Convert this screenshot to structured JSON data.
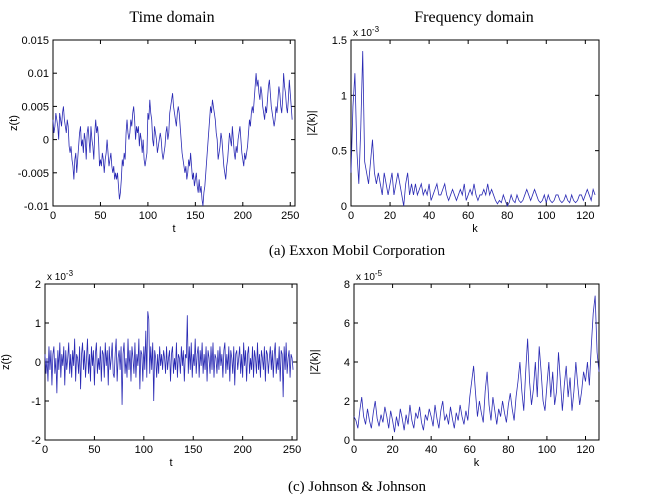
{
  "column_titles": [
    "Time domain",
    "Frequency domain"
  ],
  "captions": [
    "(a)   Exxon Mobil Corporation",
    "(c)   Johnson & Johnson"
  ],
  "series_color": "#2a2ab4",
  "chart_data": [
    {
      "type": "line",
      "xlabel": "t",
      "ylabel": "z(t)",
      "xlim": [
        0,
        255
      ],
      "ylim": [
        -0.01,
        0.015
      ],
      "xticks": [
        0,
        50,
        100,
        150,
        200,
        250
      ],
      "xtick_labels": [
        "0",
        "50",
        "100",
        "150",
        "200",
        "250"
      ],
      "yticks": [
        -0.01,
        -0.005,
        0,
        0.005,
        0.01,
        0.015
      ],
      "ytick_labels": [
        "-0.01",
        "-0.005",
        "0",
        "0.005",
        "0.01",
        "0.015"
      ],
      "exponent": "",
      "x_start": 0,
      "x_step": 1,
      "y": [
        0.003,
        0.001,
        0.002,
        0.004,
        0.003,
        0.002,
        0.0,
        0.004,
        0.003,
        0.002,
        0.004,
        0.005,
        0.003,
        0.002,
        0.001,
        0.003,
        0.002,
        -0.001,
        -0.002,
        -0.001,
        -0.003,
        -0.004,
        -0.006,
        -0.003,
        -0.002,
        -0.005,
        -0.003,
        -0.001,
        0.001,
        0.002,
        -0.001,
        0.0,
        -0.002,
        0.001,
        0.0,
        -0.003,
        0.001,
        0.002,
        0.0,
        -0.002,
        0.002,
        0.0,
        -0.001,
        -0.003,
        0.001,
        0.003,
        0.001,
        0.002,
        0.0,
        -0.004,
        -0.003,
        -0.004,
        -0.002,
        -0.003,
        -0.005,
        -0.003,
        -0.002,
        0.0,
        -0.002,
        -0.004,
        -0.003,
        -0.002,
        -0.004,
        -0.005,
        -0.004,
        -0.006,
        -0.005,
        -0.006,
        -0.005,
        -0.007,
        -0.009,
        -0.008,
        -0.006,
        -0.003,
        -0.004,
        -0.002,
        -0.003,
        0.001,
        0.003,
        0.001,
        0.0,
        0.001,
        0.003,
        0.002,
        0.004,
        0.005,
        0.003,
        0.0,
        0.002,
        0.001,
        0.002,
        -0.001,
        0.001,
        0.0,
        -0.002,
        0.0,
        -0.003,
        -0.004,
        -0.003,
        -0.002,
        0.004,
        0.003,
        0.006,
        0.004,
        0.003,
        0.0,
        -0.001,
        0.002,
        0.001,
        0.0,
        -0.002,
        -0.001,
        0.0,
        0.001,
        0.0,
        -0.002,
        -0.003,
        -0.002,
        -0.001,
        0.001,
        0.002,
        0.0,
        0.001,
        0.004,
        0.005,
        0.006,
        0.007,
        0.005,
        0.004,
        0.003,
        0.002,
        0.004,
        0.005,
        0.004,
        0.002,
        0.0,
        -0.002,
        -0.003,
        -0.004,
        -0.005,
        -0.004,
        -0.006,
        -0.005,
        -0.003,
        -0.004,
        -0.002,
        -0.004,
        -0.006,
        -0.005,
        -0.007,
        -0.006,
        -0.005,
        -0.007,
        -0.008,
        -0.006,
        -0.008,
        -0.007,
        -0.009,
        -0.01,
        -0.008,
        -0.007,
        -0.005,
        -0.003,
        -0.001,
        0.001,
        0.003,
        0.005,
        0.004,
        0.006,
        0.005,
        0.004,
        0.003,
        0.001,
        0.0,
        -0.003,
        -0.002,
        -0.001,
        0.001,
        0.0,
        -0.002,
        -0.004,
        -0.005,
        -0.006,
        -0.004,
        -0.003,
        -0.001,
        0.001,
        0.0,
        -0.001,
        0.002,
        0.0,
        -0.002,
        -0.003,
        -0.001,
        -0.002,
        0.0,
        0.001,
        0.002,
        0.0,
        -0.002,
        -0.003,
        -0.004,
        -0.002,
        -0.003,
        -0.002,
        -0.001,
        0.001,
        0.003,
        0.002,
        0.004,
        0.005,
        0.004,
        0.006,
        0.008,
        0.01,
        0.008,
        0.009,
        0.007,
        0.006,
        0.008,
        0.007,
        0.005,
        0.004,
        0.003,
        0.005,
        0.004,
        0.006,
        0.008,
        0.009,
        0.007,
        0.005,
        0.004,
        0.003,
        0.002,
        0.003,
        0.005,
        0.004,
        0.006,
        0.008,
        0.007,
        0.005,
        0.004,
        0.006,
        0.01,
        0.008,
        0.007,
        0.005,
        0.004,
        0.006,
        0.009,
        0.007,
        0.005,
        0.003
      ]
    },
    {
      "type": "line",
      "xlabel": "k",
      "ylabel": "|Z(k)|",
      "xlim": [
        0,
        127
      ],
      "ylim": [
        0,
        0.0015
      ],
      "xticks": [
        0,
        20,
        40,
        60,
        80,
        100,
        120
      ],
      "xtick_labels": [
        "0",
        "20",
        "40",
        "60",
        "80",
        "100",
        "120"
      ],
      "yticks": [
        0,
        0.0005,
        0.001,
        0.0015
      ],
      "ytick_labels": [
        "0",
        "0.5",
        "1",
        "1.5"
      ],
      "exponent": "x 10",
      "exponent_power": "-3",
      "x_start": 0,
      "x_step": 1,
      "y": [
        0.0003,
        0.0009,
        0.0012,
        0.0005,
        0.0002,
        0.0007,
        0.0014,
        0.0004,
        0.0003,
        0.0002,
        0.0004,
        0.0006,
        0.0003,
        0.0002,
        0.0003,
        0.0002,
        0.0001,
        0.0003,
        0.0002,
        0.0001,
        0.0002,
        0.0003,
        0.0001,
        0.0002,
        0.0003,
        0.0002,
        0.0001,
        0.0,
        0.0002,
        0.0003,
        0.0001,
        0.0002,
        0.0001,
        0.0002,
        0.0001,
        0.00015,
        0.0002,
        0.0001,
        0.00015,
        0.0001,
        0.0002,
        5e-05,
        0.0001,
        0.00015,
        0.0002,
        0.0001,
        0.0001,
        0.00015,
        0.0002,
        0.0001,
        5e-05,
        0.0001,
        0.00015,
        0.0001,
        5e-05,
        0.0001,
        0.00015,
        0.0001,
        0.0002,
        5e-05,
        0.0001,
        0.00015,
        0.0001,
        0.0002,
        0.0001,
        5e-05,
        0.0001,
        0.0001,
        0.00015,
        0.0001,
        0.0002,
        0.0001,
        0.00015,
        0.0001,
        5e-05,
        2e-05,
        5e-05,
        3e-05,
        0.0001,
        5e-05,
        0.0,
        3e-05,
        0.0001,
        5e-05,
        3e-05,
        0.0001,
        5e-05,
        3e-05,
        5e-05,
        0.0001,
        0.00015,
        0.0001,
        5e-05,
        0.0001,
        0.00015,
        0.0001,
        5e-05,
        3e-05,
        5e-05,
        0.0001,
        3e-05,
        0.0001,
        5e-05,
        3e-05,
        5e-05,
        0.0001,
        0.0001,
        5e-05,
        3e-05,
        5e-05,
        0.0001,
        5e-05,
        3e-05,
        0.0001,
        5e-05,
        3e-05,
        5e-05,
        0.0001,
        0.0001,
        5e-05,
        0.0001,
        0.00015,
        0.0001,
        5e-05,
        0.00015,
        0.0001
      ]
    },
    {
      "type": "line",
      "xlabel": "t",
      "ylabel": "z(t)",
      "xlim": [
        0,
        255
      ],
      "ylim": [
        -0.002,
        0.002
      ],
      "xticks": [
        0,
        50,
        100,
        150,
        200,
        250
      ],
      "xtick_labels": [
        "0",
        "50",
        "100",
        "150",
        "200",
        "250"
      ],
      "yticks": [
        -0.002,
        -0.001,
        0,
        0.001,
        0.002
      ],
      "ytick_labels": [
        "-2",
        "-1",
        "0",
        "1",
        "2"
      ],
      "exponent": "x 10",
      "exponent_power": "-3",
      "x_start": 0,
      "x_step": 1,
      "y": [
        0.0002,
        -0.0003,
        0.0001,
        -0.0005,
        0.0004,
        -0.0002,
        0.0003,
        -0.0006,
        0.0002,
        0.0004,
        -0.0003,
        0.0001,
        -0.0008,
        0.0003,
        -0.0002,
        0.0005,
        -0.0004,
        0.0002,
        -0.0001,
        0.0004,
        -0.0006,
        0.0003,
        -0.0002,
        0.0001,
        0.0005,
        -0.0003,
        0.0002,
        -0.0004,
        0.0003,
        -0.0001,
        0.0006,
        -0.0005,
        0.0002,
        0.0001,
        -0.0003,
        0.0004,
        -0.0007,
        0.0002,
        0.0005,
        -0.0002,
        0.0003,
        -0.0004,
        0.0001,
        0.0006,
        -0.0003,
        0.0002,
        -0.0005,
        0.0004,
        -0.0001,
        0.0003,
        -0.0006,
        0.0002,
        0.0005,
        -0.0003,
        0.0001,
        -0.0002,
        0.0004,
        -0.0005,
        0.0003,
        0.0002,
        -0.0004,
        0.0005,
        -0.0001,
        0.0003,
        -0.0006,
        0.0004,
        -0.0002,
        0.0001,
        0.0005,
        -0.0003,
        -0.0004,
        0.0002,
        0.0006,
        -0.0005,
        0.0001,
        0.0003,
        -0.0002,
        0.0004,
        -0.0011,
        0.0002,
        0.0005,
        -0.0003,
        0.0001,
        -0.0004,
        0.0006,
        -0.0002,
        0.0003,
        -0.0005,
        0.0004,
        0.0001,
        -0.0003,
        0.0005,
        -0.0004,
        0.0002,
        -0.0001,
        0.0006,
        -0.0007,
        0.0003,
        0.0002,
        -0.0005,
        0.0004,
        -0.0002,
        0.0008,
        -0.0004,
        0.0013,
        0.0011,
        -0.0003,
        0.0004,
        -0.0002,
        0.0005,
        -0.001,
        0.0003,
        0.0001,
        -0.0004,
        0.0002,
        -0.0003,
        0.0004,
        -0.0001,
        0.0002,
        -0.0002,
        0.0003,
        0.0001,
        -0.0003,
        0.0004,
        -0.0002,
        0.0001,
        0.0003,
        -0.0005,
        0.0002,
        0.0004,
        -0.0003,
        0.0001,
        -0.0002,
        0.0005,
        -0.0004,
        0.0002,
        0.0001,
        -0.0003,
        0.0004,
        -0.0001,
        0.0003,
        -0.0005,
        0.0002,
        0.0001,
        0.0012,
        -0.0003,
        0.0004,
        -0.0002,
        0.0005,
        -0.0004,
        0.0002,
        -0.0001,
        0.0006,
        -0.0003,
        0.0002,
        0.0004,
        -0.0004,
        0.0003,
        -0.0001,
        0.0005,
        -0.0003,
        0.0002,
        -0.0002,
        0.0004,
        -0.0005,
        0.0003,
        0.0001,
        -0.0003,
        0.0004,
        -0.0002,
        0.0005,
        -0.0004,
        0.0002,
        0.0001,
        -0.0003,
        0.0003,
        -0.0002,
        0.0004,
        -0.0001,
        0.0002,
        -0.0004,
        0.0003,
        0.0005,
        -0.0003,
        0.0002,
        -0.0002,
        0.0004,
        -0.0005,
        0.0003,
        0.0001,
        -0.0003,
        0.0004,
        -0.0006,
        0.0002,
        0.0003,
        -0.0002,
        0.0001,
        0.0004,
        -0.0003,
        0.0002,
        -0.0004,
        0.0005,
        -0.0001,
        0.0003,
        -0.0005,
        0.0002,
        0.0004,
        -0.0003,
        0.0001,
        -0.0002,
        0.0004,
        -0.0004,
        0.0003,
        0.0001,
        -0.0003,
        0.0005,
        -0.0002,
        0.0002,
        -0.0004,
        0.0003,
        0.0001,
        -0.0002,
        0.0004,
        -0.0005,
        0.0003,
        0.0002,
        -0.0003,
        0.0001,
        0.0004,
        -0.0002,
        0.0003,
        -0.0004,
        0.0002,
        0.0005,
        -0.0003,
        0.0001,
        -0.0002,
        0.0004,
        -0.0005,
        0.0003,
        0.0002,
        -0.0009,
        0.0004,
        -0.0002,
        0.0005,
        -0.0003,
        0.0001,
        0.0003,
        -0.0004,
        0.0002,
        0.0001,
        -0.0002
      ]
    },
    {
      "type": "line",
      "xlabel": "k",
      "ylabel": "|Z(k)|",
      "xlim": [
        0,
        127
      ],
      "ylim": [
        0,
        8e-05
      ],
      "xticks": [
        0,
        20,
        40,
        60,
        80,
        100,
        120
      ],
      "xtick_labels": [
        "0",
        "20",
        "40",
        "60",
        "80",
        "100",
        "120"
      ],
      "yticks": [
        0,
        2e-05,
        4e-05,
        6e-05,
        8e-05
      ],
      "ytick_labels": [
        "0",
        "2",
        "4",
        "6",
        "8"
      ],
      "exponent": "x 10",
      "exponent_power": "-5",
      "x_start": 0,
      "x_step": 1,
      "y": [
        1.2e-05,
        1e-05,
        6e-06,
        1.5e-05,
        2.2e-05,
        1.2e-05,
        8e-06,
        1.6e-05,
        1e-05,
        6e-06,
        1.4e-05,
        2e-05,
        1.1e-05,
        7e-06,
        1.3e-05,
        9e-06,
        1.7e-05,
        1.2e-05,
        6e-06,
        1.5e-05,
        1e-05,
        4e-06,
        1.2e-05,
        7e-06,
        1.6e-05,
        1.1e-05,
        5e-06,
        1.3e-05,
        8e-06,
        1.8e-05,
        1e-05,
        6e-06,
        1.4e-05,
        1.1e-05,
        1.7e-05,
        9e-06,
        5e-06,
        1.3e-05,
        1e-05,
        1.6e-05,
        1.2e-05,
        7e-06,
        1.8e-05,
        1.1e-05,
        6e-06,
        1.5e-05,
        2e-05,
        1e-05,
        1.3e-05,
        8e-06,
        1.7e-05,
        1.1e-05,
        6e-06,
        1.4e-05,
        1e-05,
        1.8e-05,
        1.2e-05,
        8e-06,
        1.5e-05,
        1e-05,
        2.2e-05,
        3e-05,
        3.8e-05,
        2.4e-05,
        1.2e-05,
        2e-05,
        1.4e-05,
        9e-06,
        2.5e-05,
        3.5e-05,
        1.8e-05,
        1e-05,
        2.2e-05,
        1.5e-05,
        8e-06,
        1.6e-05,
        1.2e-05,
        2e-05,
        1.4e-05,
        9e-06,
        1.8e-05,
        2.4e-05,
        1.6e-05,
        1e-05,
        2.2e-05,
        3e-05,
        4e-05,
        2.5e-05,
        1.5e-05,
        3.5e-05,
        5.2e-05,
        3e-05,
        1.8e-05,
        2.6e-05,
        4e-05,
        2.2e-05,
        4.8e-05,
        3.5e-05,
        2e-05,
        1.5e-05,
        2.8e-05,
        4e-05,
        2.2e-05,
        3.5e-05,
        1.8e-05,
        2.5e-05,
        4.5e-05,
        3e-05,
        1.5e-05,
        2.8e-05,
        3.8e-05,
        2.2e-05,
        3.2e-05,
        1.5e-05,
        2.5e-05,
        4e-05,
        2.8e-05,
        1.8e-05,
        2.5e-05,
        3.5e-05,
        3e-05,
        4e-05,
        2.8e-05,
        4.8e-05,
        6.5e-05,
        7.4e-05,
        4.5e-05,
        3.5e-05
      ]
    }
  ]
}
